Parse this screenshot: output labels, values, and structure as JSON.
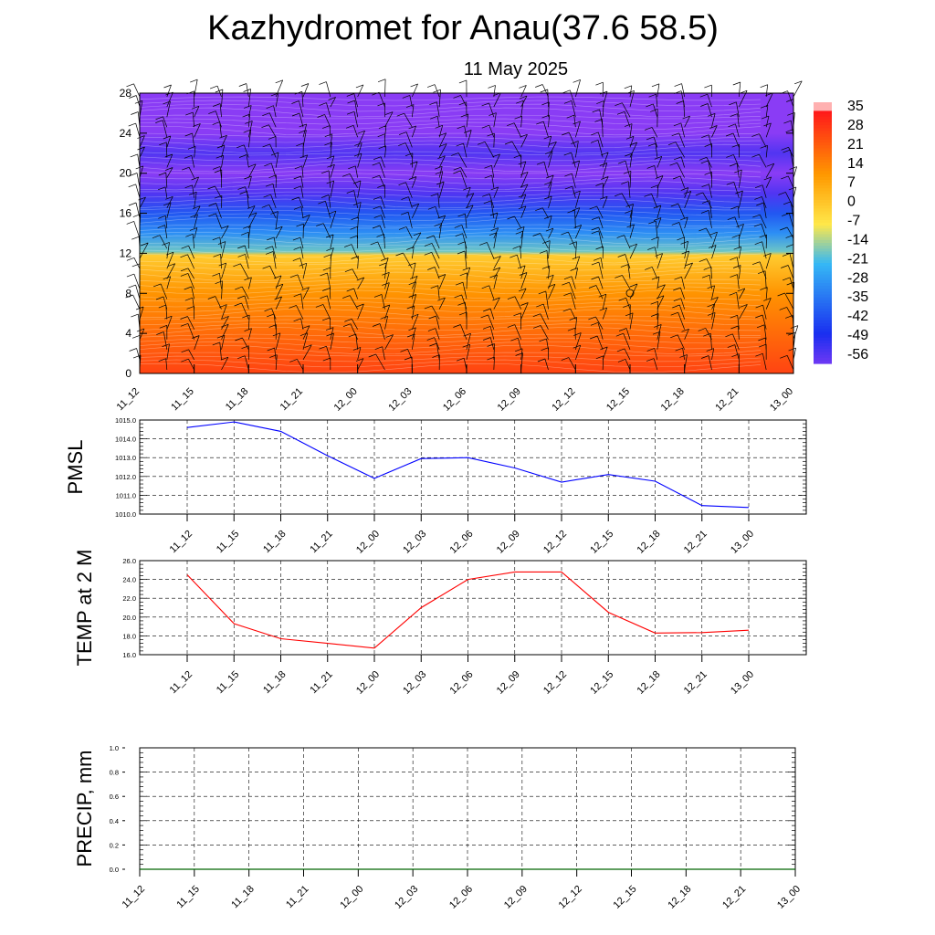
{
  "title": "Kazhydromet for Anau(37.6 58.5)",
  "subtitle": "11 May 2025",
  "chart_data": [
    {
      "type": "heatmap",
      "y_ticks": [
        "0",
        "4",
        "8",
        "12",
        "16",
        "20",
        "24",
        "28"
      ],
      "ylim": [
        0,
        28
      ],
      "x_ticks": [
        "11_12",
        "11_15",
        "11_18",
        "11_21",
        "12_00",
        "12_03",
        "12_06",
        "12_09",
        "12_12",
        "12_15",
        "12_18",
        "12_21",
        "13_00"
      ],
      "colorbar": {
        "labels": [
          "35",
          "28",
          "21",
          "14",
          "7",
          "0",
          "-7",
          "-14",
          "-21",
          "-28",
          "-35",
          "-42",
          "-49",
          "-56"
        ],
        "colors": {
          "warm": "#ff1a1a",
          "orange": "#ff9900",
          "yellow": "#ffe84a",
          "cyan": "#35b8f5",
          "blue": "#1a2ef0",
          "purple": "#8a3cf5"
        }
      },
      "field_bands": [
        {
          "y": 0,
          "value": 28
        },
        {
          "y": 4,
          "value": 21
        },
        {
          "y": 8,
          "value": 14
        },
        {
          "y": 11.8,
          "value": 2
        },
        {
          "y": 12.2,
          "value": -14
        },
        {
          "y": 14,
          "value": -25
        },
        {
          "y": 16,
          "value": -35
        },
        {
          "y": 18,
          "value": -49
        },
        {
          "y": 20,
          "value": -56
        },
        {
          "y": 22,
          "value": -49
        },
        {
          "y": 24,
          "value": -56
        },
        {
          "y": 28,
          "value": -56
        }
      ]
    },
    {
      "type": "line",
      "ylabel": "PMSL",
      "ylim": [
        1010.0,
        1015.0
      ],
      "y_ticks": [
        "1010.0",
        "1011.0",
        "1012.0",
        "1013.0",
        "1014.0",
        "1015.0"
      ],
      "categories": [
        "11_12",
        "11_15",
        "11_18",
        "11_21",
        "12_00",
        "12_03",
        "12_06",
        "12_09",
        "12_12",
        "12_15",
        "12_18",
        "12_21",
        "13_00"
      ],
      "values": [
        1014.6,
        1014.9,
        1014.4,
        1013.1,
        1011.9,
        1012.95,
        1013.0,
        1012.45,
        1011.7,
        1012.1,
        1011.75,
        1010.45,
        1010.35
      ],
      "color": "#0000ff"
    },
    {
      "type": "line",
      "ylabel": "TEMP at 2 M",
      "ylim": [
        16.0,
        26.0
      ],
      "y_ticks": [
        "16.0",
        "18.0",
        "20.0",
        "22.0",
        "24.0",
        "26.0"
      ],
      "categories": [
        "11_12",
        "11_15",
        "11_18",
        "11_21",
        "12_00",
        "12_03",
        "12_06",
        "12_09",
        "12_12",
        "12_15",
        "12_18",
        "12_21",
        "13_00"
      ],
      "values": [
        24.5,
        19.3,
        17.7,
        17.2,
        16.7,
        21.0,
        24.0,
        24.8,
        24.8,
        20.5,
        18.3,
        18.35,
        18.6
      ],
      "color": "#ff0000"
    },
    {
      "type": "line",
      "ylabel": "PRECIP, mm",
      "ylim": [
        0.0,
        1.0
      ],
      "y_ticks": [
        "0.0",
        "0.2",
        "0.4",
        "0.6",
        "0.8",
        "1.0"
      ],
      "categories": [
        "11_12",
        "11_15",
        "11_18",
        "11_21",
        "12_00",
        "12_03",
        "12_06",
        "12_09",
        "12_12",
        "12_15",
        "12_18",
        "12_21",
        "13_00"
      ],
      "values": [
        0,
        0,
        0,
        0,
        0,
        0,
        0,
        0,
        0,
        0,
        0,
        0,
        0
      ],
      "color": "#006400"
    }
  ]
}
